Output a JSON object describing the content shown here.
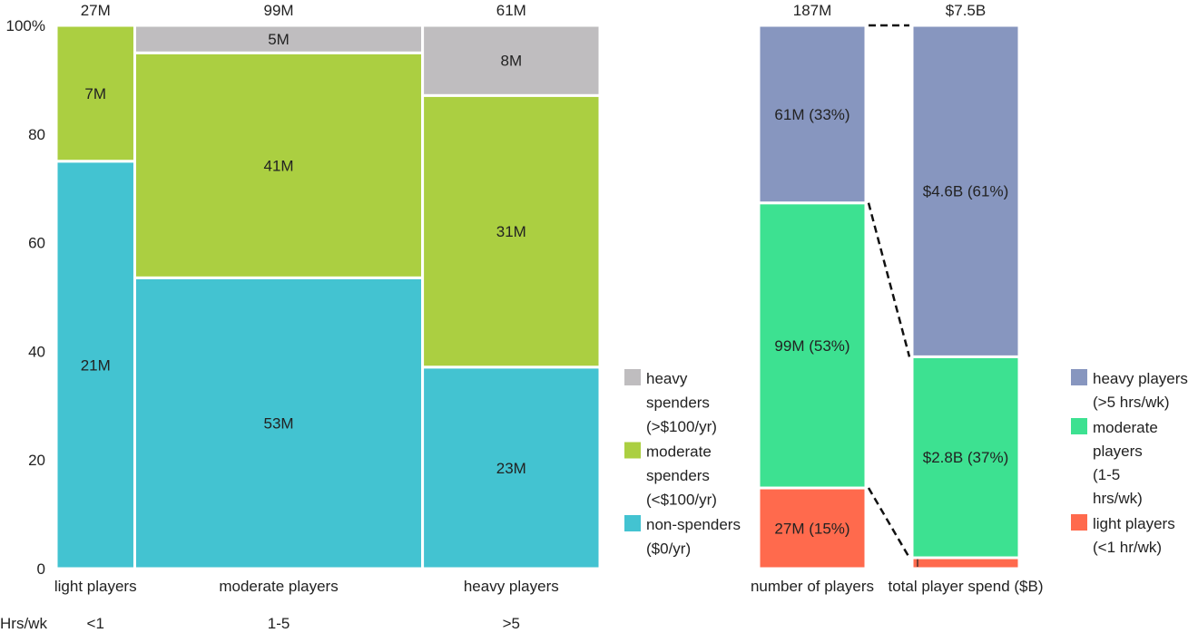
{
  "colors": {
    "heavy_spenders": "#bfbdbf",
    "moderate_spenders": "#abcf41",
    "non_spenders": "#43c3d1",
    "heavy_players": "#8796bf",
    "moderate_players": "#3de191",
    "light_players": "#ff6a4d"
  },
  "chart_data": [
    {
      "type": "mosaic",
      "ylim": [
        0,
        100
      ],
      "ytick_labels": [
        "0",
        "20",
        "40",
        "60",
        "80",
        "100%"
      ],
      "ytick_values": [
        0,
        20,
        40,
        60,
        80,
        100
      ],
      "xlabel_prefix": "Hrs/wk",
      "columns": [
        {
          "label": "light players",
          "hours": "<1",
          "total": 27,
          "total_label": "27M",
          "segments": [
            {
              "key": "non_spenders",
              "value": 21,
              "label": "21M"
            },
            {
              "key": "moderate_spenders",
              "value": 7,
              "label": "7M"
            }
          ]
        },
        {
          "label": "moderate players",
          "hours": "1-5",
          "total": 99,
          "total_label": "99M",
          "segments": [
            {
              "key": "non_spenders",
              "value": 53,
              "label": "53M"
            },
            {
              "key": "moderate_spenders",
              "value": 41,
              "label": "41M"
            },
            {
              "key": "heavy_spenders",
              "value": 5,
              "label": "5M"
            }
          ]
        },
        {
          "label": "heavy players",
          "hours": ">5",
          "total": 61,
          "total_label": "61M",
          "segments": [
            {
              "key": "non_spenders",
              "value": 23,
              "label": "23M"
            },
            {
              "key": "moderate_spenders",
              "value": 31,
              "label": "31M"
            },
            {
              "key": "heavy_spenders",
              "value": 8,
              "label": "8M"
            }
          ]
        }
      ],
      "legend": [
        {
          "key": "heavy_spenders",
          "lines": [
            "heavy",
            "spenders",
            "(>$100/yr)"
          ]
        },
        {
          "key": "moderate_spenders",
          "lines": [
            "moderate",
            "spenders",
            "(<$100/yr)"
          ]
        },
        {
          "key": "non_spenders",
          "lines": [
            "non-spenders",
            "($0/yr)"
          ]
        }
      ]
    },
    {
      "type": "stacked-bar-100",
      "bars": [
        {
          "label": "number of players",
          "total_label": "187M",
          "segments": [
            {
              "key": "light_players",
              "percent": 15,
              "label": "27M (15%)"
            },
            {
              "key": "moderate_players",
              "percent": 53,
              "label": "99M (53%)"
            },
            {
              "key": "heavy_players",
              "percent": 33,
              "label": "61M (33%)"
            }
          ]
        },
        {
          "label": "total player spend ($B)",
          "total_label": "$7.5B",
          "segments": [
            {
              "key": "light_players",
              "percent": 2,
              "label": "$0.1B (2%)"
            },
            {
              "key": "moderate_players",
              "percent": 37,
              "label": "$2.8B (37%)"
            },
            {
              "key": "heavy_players",
              "percent": 61,
              "label": "$4.6B (61%)"
            }
          ]
        }
      ],
      "legend": [
        {
          "key": "heavy_players",
          "lines": [
            "heavy players",
            "(>5 hrs/wk)"
          ]
        },
        {
          "key": "moderate_players",
          "lines": [
            "moderate",
            "players",
            "(1-5",
            "hrs/wk)"
          ]
        },
        {
          "key": "light_players",
          "lines": [
            "light players",
            "(<1 hr/wk)"
          ]
        }
      ]
    }
  ]
}
